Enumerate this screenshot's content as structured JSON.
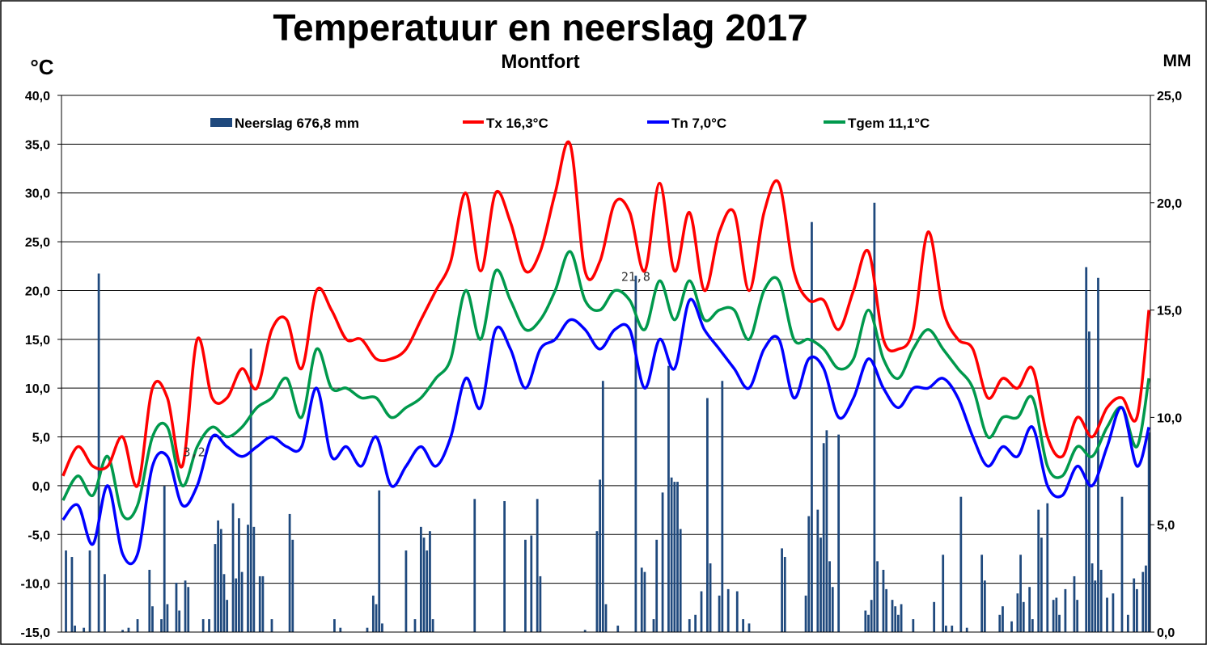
{
  "chart_data": {
    "type": "bar+line",
    "title": "Temperatuur en neerslag 2017",
    "subtitle": "Montfort",
    "ylabel": "°C",
    "y2label": "MM",
    "ylim": [
      -15,
      40
    ],
    "y2lim": [
      0,
      25
    ],
    "yticks": [
      "-15,0",
      "-10,0",
      "-5,0",
      "0,0",
      "5,0",
      "10,0",
      "15,0",
      "20,0",
      "25,0",
      "30,0",
      "35,0",
      "40,0"
    ],
    "y2ticks": [
      "0,0",
      "5,0",
      "10,0",
      "15,0",
      "20,0",
      "25,0"
    ],
    "grid": true,
    "legend_position": "top",
    "legend": {
      "rain": "Neerslag 676,8 mm",
      "tx": "Tx 16,3°C",
      "tn": "Tn 7,0°C",
      "tgem": "Tgem 11,1°C"
    },
    "colors": {
      "rain": "#1f497d",
      "tx": "#ff0000",
      "tn": "#0000ff",
      "tgem": "#00994c"
    },
    "days": 365,
    "temp_sample_step_days": 5,
    "tx": [
      1,
      4,
      2,
      2,
      5,
      0,
      10,
      9,
      2,
      15,
      9,
      9,
      12,
      10,
      16,
      17,
      12,
      20,
      18,
      15,
      15,
      13,
      13,
      14,
      17,
      20,
      23,
      30,
      22,
      30,
      27,
      22,
      24,
      30,
      35,
      22,
      23,
      29,
      28,
      22,
      31,
      22,
      28,
      20,
      26,
      28,
      20,
      28,
      31,
      22,
      19,
      19,
      16,
      20,
      24,
      15,
      14,
      16,
      26,
      18,
      15,
      14,
      9,
      11,
      10,
      12,
      5,
      3,
      7,
      5,
      8,
      9,
      7,
      18
    ],
    "tn": [
      -3.5,
      -2,
      -6,
      0,
      -7,
      -7,
      2,
      3,
      -2,
      0,
      5,
      4,
      3,
      4,
      5,
      4,
      4,
      10,
      3,
      4,
      2,
      5,
      0,
      2,
      4,
      2,
      5,
      11,
      8,
      16,
      14,
      10,
      14,
      15,
      17,
      16,
      14,
      16,
      16,
      10,
      15,
      12,
      19,
      16,
      14,
      12,
      10,
      14,
      15,
      9,
      13,
      12,
      7,
      9,
      13,
      10,
      8,
      10,
      10,
      11,
      9,
      5,
      2,
      4,
      3,
      6,
      0,
      -1,
      2,
      0,
      4,
      8,
      2,
      6
    ],
    "tgem": [
      -1.5,
      1,
      -1,
      3,
      -3,
      -2,
      5,
      6,
      0,
      4,
      6,
      5,
      6,
      8,
      9,
      11,
      7,
      14,
      10,
      10,
      9,
      9,
      7,
      8,
      9,
      11,
      13,
      20,
      15,
      22,
      19,
      16,
      17,
      20,
      24,
      19,
      18,
      20,
      19,
      16,
      21,
      17,
      21,
      17,
      18,
      18,
      15,
      20,
      21,
      15,
      15,
      14,
      12,
      13,
      18,
      13,
      11,
      14,
      16,
      14,
      12,
      10,
      5,
      7,
      7,
      9,
      2,
      1,
      4,
      3,
      6,
      8,
      4,
      11
    ],
    "rain": [
      [
        1,
        3.8
      ],
      [
        3,
        3.5
      ],
      [
        4,
        0.3
      ],
      [
        7,
        0.2
      ],
      [
        9,
        3.8
      ],
      [
        12,
        16.7
      ],
      [
        14,
        2.7
      ],
      [
        20,
        0.1
      ],
      [
        22,
        0.2
      ],
      [
        25,
        0.6
      ],
      [
        29,
        2.9
      ],
      [
        30,
        1.2
      ],
      [
        33,
        0.6
      ],
      [
        34,
        6.8
      ],
      [
        35,
        1.3
      ],
      [
        38,
        2.3
      ],
      [
        39,
        1.0
      ],
      [
        41,
        2.4
      ],
      [
        42,
        2.1
      ],
      [
        47,
        0.6
      ],
      [
        49,
        0.6
      ],
      [
        51,
        4.1
      ],
      [
        52,
        5.2
      ],
      [
        53,
        4.8
      ],
      [
        54,
        2.7
      ],
      [
        55,
        1.5
      ],
      [
        57,
        6.0
      ],
      [
        58,
        2.5
      ],
      [
        59,
        5.3
      ],
      [
        60,
        2.8
      ],
      [
        62,
        5.0
      ],
      [
        63,
        13.2
      ],
      [
        64,
        4.9
      ],
      [
        66,
        2.6
      ],
      [
        67,
        2.6
      ],
      [
        70,
        0.6
      ],
      [
        76,
        5.5
      ],
      [
        77,
        4.3
      ],
      [
        91,
        0.6
      ],
      [
        93,
        0.2
      ],
      [
        102,
        0.2
      ],
      [
        104,
        1.7
      ],
      [
        105,
        1.3
      ],
      [
        106,
        6.6
      ],
      [
        107,
        0.4
      ],
      [
        115,
        3.8
      ],
      [
        118,
        0.6
      ],
      [
        120,
        4.9
      ],
      [
        121,
        4.4
      ],
      [
        122,
        3.8
      ],
      [
        123,
        4.7
      ],
      [
        124,
        0.6
      ],
      [
        138,
        6.2
      ],
      [
        148,
        6.1
      ],
      [
        155,
        4.3
      ],
      [
        157,
        4.5
      ],
      [
        159,
        6.2
      ],
      [
        160,
        2.6
      ],
      [
        175,
        0.1
      ],
      [
        179,
        4.7
      ],
      [
        180,
        7.1
      ],
      [
        181,
        11.7
      ],
      [
        182,
        1.3
      ],
      [
        186,
        0.3
      ],
      [
        192,
        16.6
      ],
      [
        194,
        3.0
      ],
      [
        195,
        2.8
      ],
      [
        198,
        0.6
      ],
      [
        199,
        4.3
      ],
      [
        201,
        6.5
      ],
      [
        203,
        12.4
      ],
      [
        204,
        7.2
      ],
      [
        205,
        7.0
      ],
      [
        206,
        7.0
      ],
      [
        207,
        4.8
      ],
      [
        210,
        0.6
      ],
      [
        212,
        0.8
      ],
      [
        214,
        1.9
      ],
      [
        216,
        10.9
      ],
      [
        217,
        3.2
      ],
      [
        220,
        1.7
      ],
      [
        221,
        11.7
      ],
      [
        223,
        2.0
      ],
      [
        226,
        1.9
      ],
      [
        228,
        0.6
      ],
      [
        230,
        0.4
      ],
      [
        241,
        3.9
      ],
      [
        242,
        3.5
      ],
      [
        249,
        1.7
      ],
      [
        250,
        5.4
      ],
      [
        251,
        19.1
      ],
      [
        253,
        5.7
      ],
      [
        254,
        4.4
      ],
      [
        255,
        8.8
      ],
      [
        256,
        9.4
      ],
      [
        257,
        3.3
      ],
      [
        258,
        2.1
      ],
      [
        260,
        9.2
      ],
      [
        269,
        1.0
      ],
      [
        270,
        0.8
      ],
      [
        271,
        1.5
      ],
      [
        272,
        20.0
      ],
      [
        273,
        3.3
      ],
      [
        275,
        2.9
      ],
      [
        276,
        2.0
      ],
      [
        278,
        1.5
      ],
      [
        279,
        1.2
      ],
      [
        280,
        0.8
      ],
      [
        281,
        1.3
      ],
      [
        285,
        0.6
      ],
      [
        292,
        1.4
      ],
      [
        295,
        3.6
      ],
      [
        296,
        0.3
      ],
      [
        298,
        0.3
      ],
      [
        301,
        6.3
      ],
      [
        303,
        0.2
      ],
      [
        308,
        3.6
      ],
      [
        309,
        2.4
      ],
      [
        314,
        0.8
      ],
      [
        315,
        1.2
      ],
      [
        318,
        0.5
      ],
      [
        320,
        1.8
      ],
      [
        321,
        3.6
      ],
      [
        322,
        1.4
      ],
      [
        324,
        2.1
      ],
      [
        325,
        0.6
      ],
      [
        327,
        5.7
      ],
      [
        328,
        4.4
      ],
      [
        330,
        6.0
      ],
      [
        332,
        1.5
      ],
      [
        333,
        1.6
      ],
      [
        334,
        0.8
      ],
      [
        336,
        2.0
      ],
      [
        339,
        2.6
      ],
      [
        340,
        1.5
      ],
      [
        343,
        17.0
      ],
      [
        344,
        14.0
      ],
      [
        345,
        3.2
      ],
      [
        346,
        2.4
      ],
      [
        347,
        16.5
      ],
      [
        348,
        2.9
      ],
      [
        350,
        1.6
      ],
      [
        352,
        1.8
      ],
      [
        355,
        6.3
      ],
      [
        357,
        0.8
      ],
      [
        359,
        2.5
      ],
      [
        360,
        2.0
      ],
      [
        362,
        2.8
      ],
      [
        363,
        3.1
      ],
      [
        364,
        9.3
      ]
    ],
    "annotations": [
      {
        "text": "21,8",
        "day": 192,
        "temp": 21.0
      },
      {
        "text": "3,2",
        "day": 44,
        "temp": 3.0
      }
    ]
  }
}
